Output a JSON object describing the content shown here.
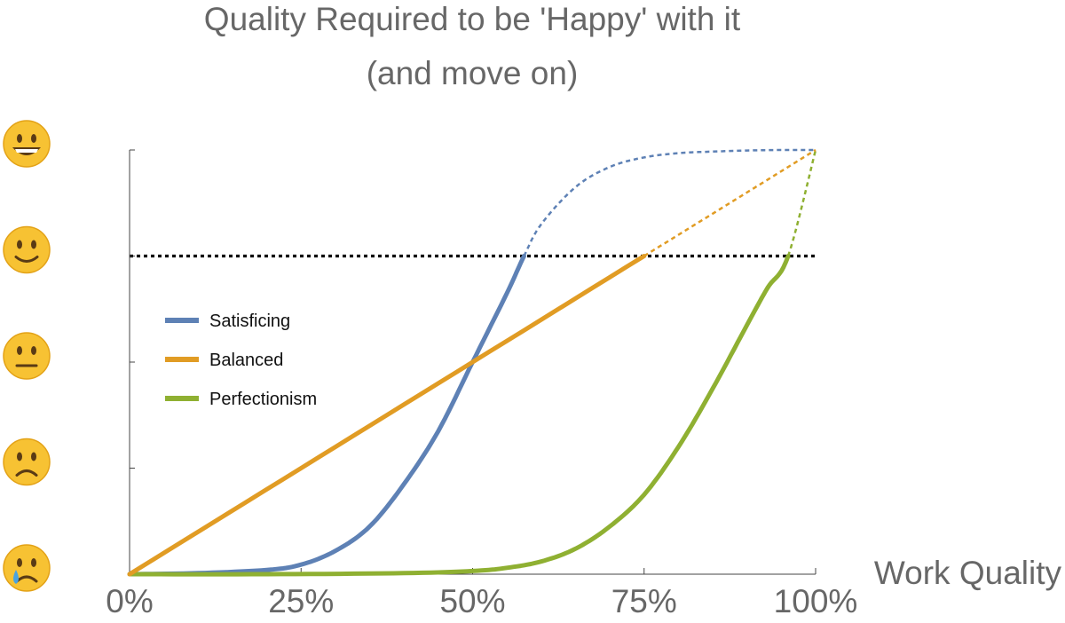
{
  "chart_data": {
    "type": "line",
    "title": [
      "Quality Required to be 'Happy' with it",
      "(and move on)"
    ],
    "xlabel": "Work Quality",
    "ylabel": "",
    "xlim": [
      0,
      100
    ],
    "ylim": [
      0,
      4
    ],
    "x_ticks": [
      0,
      25,
      50,
      75,
      100
    ],
    "x_tick_labels": [
      "0%",
      "25%",
      "50%",
      "75%",
      "100%"
    ],
    "y_ticks": [
      0,
      1,
      2,
      3,
      4
    ],
    "y_tick_icons": [
      "crying-face-icon",
      "frowning-face-icon",
      "neutral-face-icon",
      "slightly-smiling-face-icon",
      "grinning-face-icon"
    ],
    "y_tick_emoji": [
      "😢",
      "🙁",
      "😐",
      "🙂",
      "😀"
    ],
    "threshold": {
      "y": 3,
      "style": "dotted",
      "color": "#000000"
    },
    "legend": {
      "position": "left-middle"
    },
    "series": [
      {
        "name": "Satisficing",
        "color": "#5e81b5",
        "solid_until_x": 57.5,
        "x": [
          0,
          10,
          20,
          25,
          30,
          35,
          40,
          45,
          50,
          55,
          57.5,
          60,
          65,
          70,
          75,
          80,
          85,
          90,
          95,
          100
        ],
        "y": [
          0,
          0.01,
          0.04,
          0.09,
          0.22,
          0.45,
          0.85,
          1.35,
          2.0,
          2.65,
          3.0,
          3.3,
          3.65,
          3.84,
          3.93,
          3.97,
          3.985,
          3.995,
          4.0,
          4.0
        ]
      },
      {
        "name": "Balanced",
        "color": "#e19c24",
        "solid_until_x": 75,
        "x": [
          0,
          25,
          50,
          75,
          100
        ],
        "y": [
          0,
          1,
          2,
          3,
          4
        ]
      },
      {
        "name": "Perfectionism",
        "color": "#8fb032",
        "solid_until_x": 96,
        "x": [
          0,
          20,
          40,
          50,
          55,
          60,
          65,
          70,
          75,
          80,
          85,
          90,
          93,
          96,
          100
        ],
        "y": [
          0,
          0,
          0.01,
          0.03,
          0.06,
          0.12,
          0.24,
          0.45,
          0.75,
          1.2,
          1.75,
          2.35,
          2.7,
          3.0,
          4.0
        ]
      }
    ]
  }
}
